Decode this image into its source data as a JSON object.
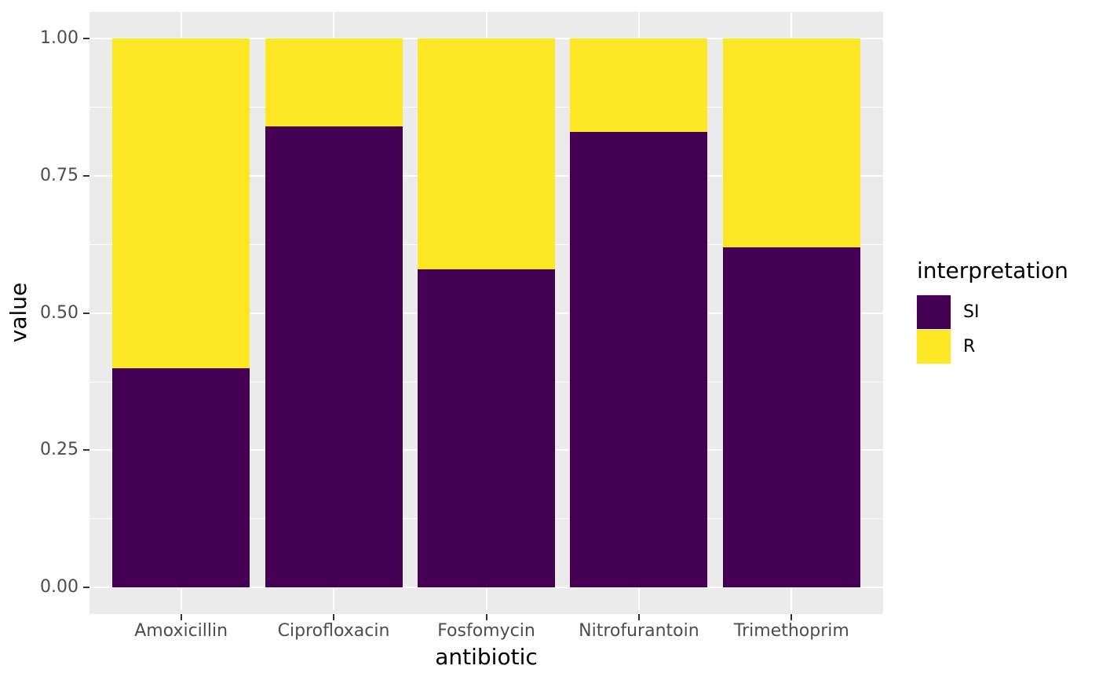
{
  "chart_data": {
    "type": "bar",
    "stacked": true,
    "orientation": "vertical",
    "xlabel": "antibiotic",
    "ylabel": "value",
    "categories": [
      "Amoxicillin",
      "Ciprofloxacin",
      "Fosfomycin",
      "Nitrofurantoin",
      "Trimethoprim"
    ],
    "series": [
      {
        "name": "SI",
        "color": "#440154",
        "values": [
          0.4,
          0.84,
          0.58,
          0.83,
          0.62
        ]
      },
      {
        "name": "R",
        "color": "#FDE725",
        "values": [
          0.6,
          0.16,
          0.42,
          0.17,
          0.38
        ]
      }
    ],
    "ylim": [
      0,
      1
    ],
    "ytick_labels": [
      "0.00",
      "0.25",
      "0.50",
      "0.75",
      "1.00"
    ],
    "ytick_values": [
      0,
      0.25,
      0.5,
      0.75,
      1.0
    ],
    "yminor_values": [
      0.125,
      0.375,
      0.625,
      0.875
    ],
    "legend": {
      "title": "interpretation",
      "position": "right",
      "entries": [
        {
          "label": "SI",
          "color": "#440154"
        },
        {
          "label": "R",
          "color": "#FDE725"
        }
      ]
    },
    "style": {
      "panel_bg": "#EBEBEB",
      "grid_color": "#FFFFFF",
      "tick_label_color": "#4D4D4D",
      "axis_title_color": "#000000",
      "tick_mark_color": "#333333"
    }
  }
}
